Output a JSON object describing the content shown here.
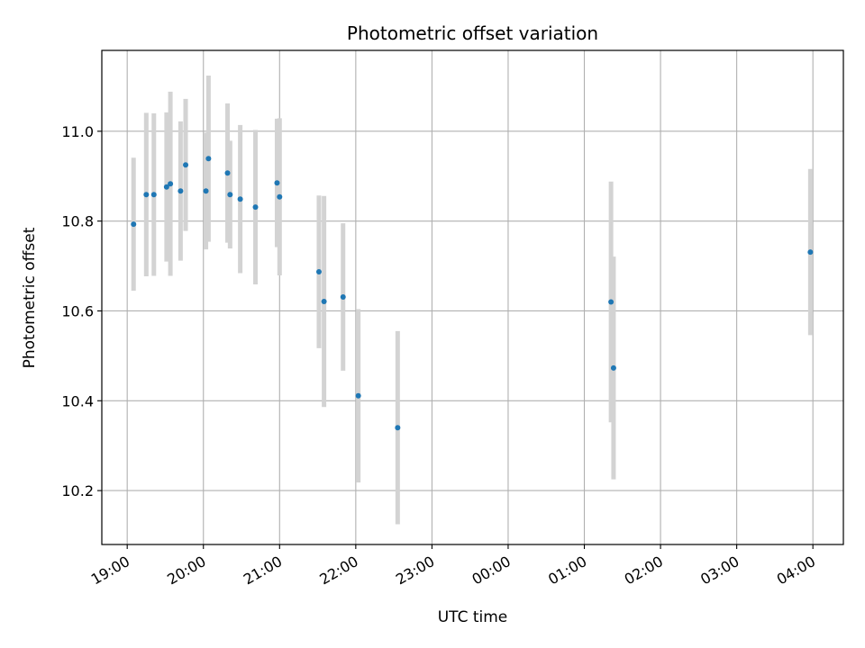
{
  "chart_data": {
    "type": "scatter",
    "title": "Photometric offset variation",
    "xlabel": "UTC time",
    "ylabel": "Photometric offset",
    "xlim": [
      "2024-01-01T18:40",
      "2024-01-02T04:24"
    ],
    "ylim": [
      10.08,
      11.18
    ],
    "x_ticks": [
      {
        "t": "2024-01-01T19:00",
        "label": "19:00"
      },
      {
        "t": "2024-01-01T20:00",
        "label": "20:00"
      },
      {
        "t": "2024-01-01T21:00",
        "label": "21:00"
      },
      {
        "t": "2024-01-01T22:00",
        "label": "22:00"
      },
      {
        "t": "2024-01-01T23:00",
        "label": "23:00"
      },
      {
        "t": "2024-01-02T00:00",
        "label": "00:00"
      },
      {
        "t": "2024-01-02T01:00",
        "label": "01:00"
      },
      {
        "t": "2024-01-02T02:00",
        "label": "02:00"
      },
      {
        "t": "2024-01-02T03:00",
        "label": "03:00"
      },
      {
        "t": "2024-01-02T04:00",
        "label": "04:00"
      }
    ],
    "y_ticks": [
      {
        "v": 10.2,
        "label": "10.2"
      },
      {
        "v": 10.4,
        "label": "10.4"
      },
      {
        "v": 10.6,
        "label": "10.6"
      },
      {
        "v": 10.8,
        "label": "10.8"
      },
      {
        "v": 11.0,
        "label": "11.0"
      }
    ],
    "grid": true,
    "marker_color": "#1f77b4",
    "errorbar_color": "#d3d3d3",
    "points": [
      {
        "t": "2024-01-01T19:05",
        "y": 10.793,
        "err": 0.148
      },
      {
        "t": "2024-01-01T19:15",
        "y": 10.859,
        "err": 0.182
      },
      {
        "t": "2024-01-01T19:21",
        "y": 10.859,
        "err": 0.181
      },
      {
        "t": "2024-01-01T19:31",
        "y": 10.876,
        "err": 0.166
      },
      {
        "t": "2024-01-01T19:34",
        "y": 10.883,
        "err": 0.205
      },
      {
        "t": "2024-01-01T19:42",
        "y": 10.867,
        "err": 0.155
      },
      {
        "t": "2024-01-01T19:46",
        "y": 10.925,
        "err": 0.147
      },
      {
        "t": "2024-01-01T20:02",
        "y": 10.867,
        "err": 0.13
      },
      {
        "t": "2024-01-01T20:04",
        "y": 10.939,
        "err": 0.185
      },
      {
        "t": "2024-01-01T20:19",
        "y": 10.907,
        "err": 0.155
      },
      {
        "t": "2024-01-01T20:21",
        "y": 10.859,
        "err": 0.12
      },
      {
        "t": "2024-01-01T20:29",
        "y": 10.849,
        "err": 0.165
      },
      {
        "t": "2024-01-01T20:41",
        "y": 10.831,
        "err": 0.172
      },
      {
        "t": "2024-01-01T20:58",
        "y": 10.885,
        "err": 0.143
      },
      {
        "t": "2024-01-01T21:00",
        "y": 10.854,
        "err": 0.175
      },
      {
        "t": "2024-01-01T21:31",
        "y": 10.687,
        "err": 0.17
      },
      {
        "t": "2024-01-01T21:35",
        "y": 10.621,
        "err": 0.235
      },
      {
        "t": "2024-01-01T21:50",
        "y": 10.631,
        "err": 0.164
      },
      {
        "t": "2024-01-01T22:02",
        "y": 10.411,
        "err": 0.193
      },
      {
        "t": "2024-01-01T22:33",
        "y": 10.34,
        "err": 0.215
      },
      {
        "t": "2024-01-02T01:21",
        "y": 10.62,
        "err": 0.268
      },
      {
        "t": "2024-01-02T01:23",
        "y": 10.473,
        "err": 0.248
      },
      {
        "t": "2024-01-02T03:58",
        "y": 10.731,
        "err": 0.185
      }
    ]
  }
}
